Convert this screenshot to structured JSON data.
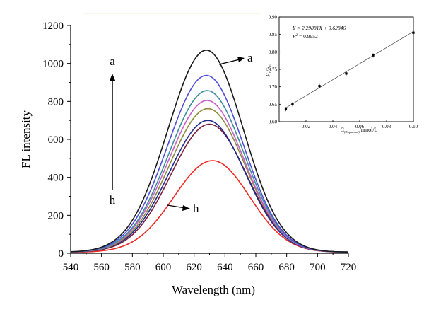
{
  "chart_data": [
    {
      "type": "line",
      "xlabel": "Wavelength (nm)",
      "ylabel": "FL intensity",
      "xlim": [
        540,
        720
      ],
      "ylim": [
        0,
        1200
      ],
      "xticks": [
        540,
        560,
        580,
        600,
        620,
        640,
        660,
        680,
        700,
        720
      ],
      "yticks": [
        0,
        200,
        400,
        600,
        800,
        1000,
        1200
      ],
      "series": [
        {
          "label": "a",
          "color": "#1a1a1a",
          "peak_x": 628,
          "peak_y": 1070,
          "width_left": 25,
          "width_right": 24,
          "base": 6
        },
        {
          "color": "#4d4dd9",
          "peak_x": 628,
          "peak_y": 937,
          "width_left": 25,
          "width_right": 24,
          "base": 6
        },
        {
          "color": "#3a8f9a",
          "peak_x": 628.5,
          "peak_y": 857,
          "width_left": 25,
          "width_right": 24,
          "base": 6
        },
        {
          "color": "#c85fc8",
          "peak_x": 628.5,
          "peak_y": 805,
          "width_left": 25,
          "width_right": 24,
          "base": 6
        },
        {
          "color": "#8c8a3a",
          "peak_x": 629,
          "peak_y": 762,
          "width_left": 25,
          "width_right": 24,
          "base": 6
        },
        {
          "color": "#1f2a8a",
          "peak_x": 629,
          "peak_y": 700,
          "width_left": 25,
          "width_right": 24,
          "base": 6
        },
        {
          "color": "#7a1f3d",
          "peak_x": 630,
          "peak_y": 680,
          "width_left": 25,
          "width_right": 24,
          "base": 6
        },
        {
          "label": "h",
          "color": "#ee2a24",
          "peak_x": 632,
          "peak_y": 488,
          "width_left": 25,
          "width_right": 24,
          "base": 5
        }
      ],
      "annotations": {
        "top_label": "a",
        "bottom_label": "h",
        "curve_a_label": "a",
        "curve_h_label": "h"
      }
    },
    {
      "type": "scatter",
      "xlabel": "C",
      "xlabel_sub": "(Dopamine)",
      "xlabel_tail": "/nmol/L",
      "ylabel": "F",
      "ylabel_sub": "1",
      "ylabel_mid": "/F",
      "ylabel_sub2": "0",
      "xlim": [
        0.0,
        0.1
      ],
      "ylim": [
        0.6,
        0.9
      ],
      "xticks": [
        "0.02",
        "0.04",
        "0.06",
        "0.08",
        "0.10"
      ],
      "yticks": [
        "0.60",
        "0.65",
        "0.70",
        "0.75",
        "0.80",
        "0.85",
        "0.90"
      ],
      "x": [
        0.005,
        0.01,
        0.03,
        0.05,
        0.07,
        0.1
      ],
      "y": [
        0.636,
        0.65,
        0.702,
        0.738,
        0.79,
        0.855
      ],
      "fit": {
        "slope": 2.29881,
        "intercept": 0.62846
      },
      "equation": "Y = 2.29881X + 0.62846",
      "r2_label": "R",
      "r2_sup": "2",
      "r2_value": " = 0.9952"
    }
  ]
}
